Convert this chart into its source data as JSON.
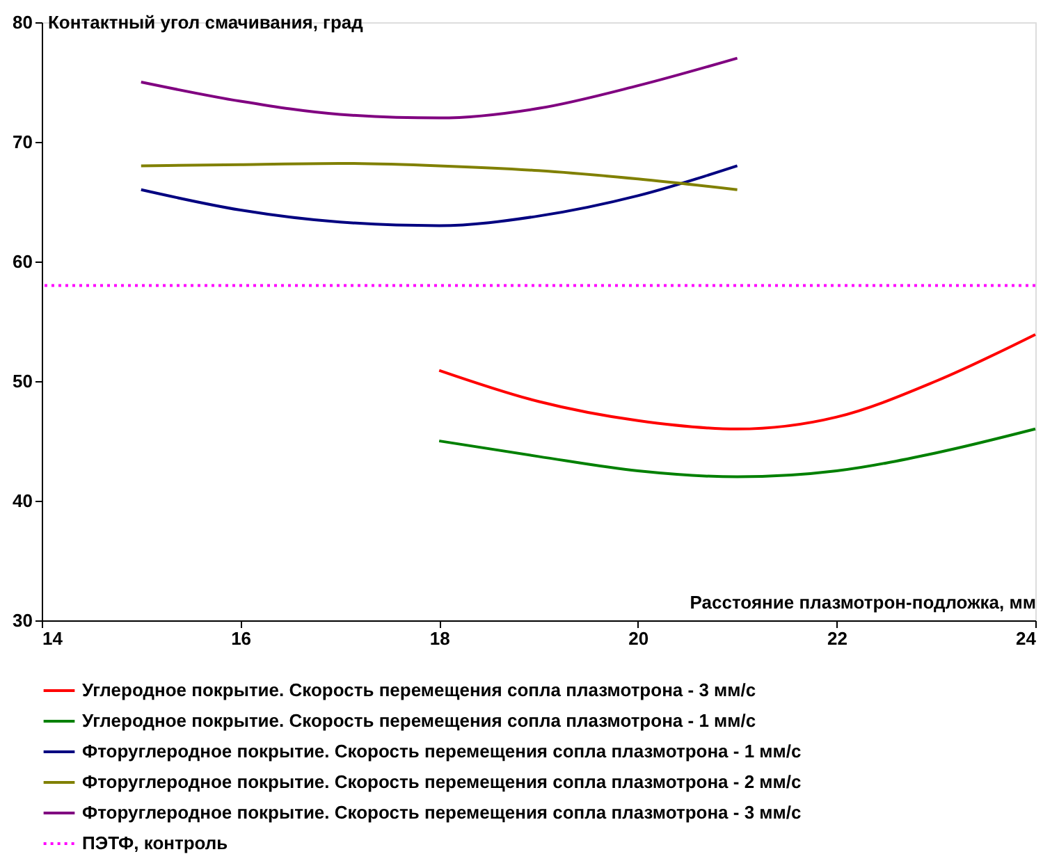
{
  "chart_data": {
    "type": "line",
    "xlabel": "Расстояние плазмотрон-подложка, мм",
    "ylabel": "Контактный угол смачивания, град",
    "xlim": [
      14,
      24
    ],
    "xticks": [
      14,
      16,
      18,
      20,
      22,
      24
    ],
    "ylim": [
      30,
      80
    ],
    "yticks": [
      30,
      40,
      50,
      60,
      70,
      80
    ],
    "grid": false,
    "legend": "bottom",
    "marker": "none",
    "line_style": "solid",
    "series": [
      {
        "name": "Углеродное покрытие. Скорость перемещения сопла плазмотрона - 3 мм/с",
        "color": "#ff0000",
        "x": [
          18,
          19,
          20,
          21,
          22,
          23,
          24
        ],
        "values": [
          50.9,
          48.3,
          46.7,
          46,
          47,
          50,
          53.9
        ]
      },
      {
        "name": "Углеродное покрытие. Скорость перемещения сопла плазмотрона - 1 мм/с",
        "color": "#008000",
        "x": [
          18,
          19,
          20,
          21,
          22,
          23,
          24
        ],
        "values": [
          45,
          43.7,
          42.5,
          42,
          42.5,
          44,
          46
        ]
      },
      {
        "name": "Фторуглеродное покрытие. Скорость перемещения сопла плазмотрона - 1 мм/с",
        "color": "#000080",
        "x": [
          15,
          16,
          17,
          18,
          19,
          20,
          21
        ],
        "values": [
          66,
          64.3,
          63.3,
          63,
          63.8,
          65.5,
          68
        ]
      },
      {
        "name": "Фторуглеродное покрытие. Скорость перемещения сопла плазмотрона - 2 мм/с",
        "color": "#808000",
        "x": [
          15,
          16,
          17,
          18,
          19,
          20,
          21
        ],
        "values": [
          68,
          68.1,
          68.2,
          68,
          67.6,
          66.9,
          66
        ]
      },
      {
        "name": "Фторуглеродное покрытие. Скорость перемещения сопла плазмотрона - 3 мм/с",
        "color": "#800080",
        "x": [
          15,
          16,
          17,
          18,
          19,
          20,
          21
        ],
        "values": [
          75,
          73.4,
          72.3,
          72,
          72.8,
          74.7,
          77
        ]
      }
    ],
    "ref_lines": [
      {
        "axis": "y",
        "value": 58,
        "label": "ПЭТФ, контроль",
        "color": "#ff00ff",
        "line_style": "dotted"
      }
    ]
  }
}
